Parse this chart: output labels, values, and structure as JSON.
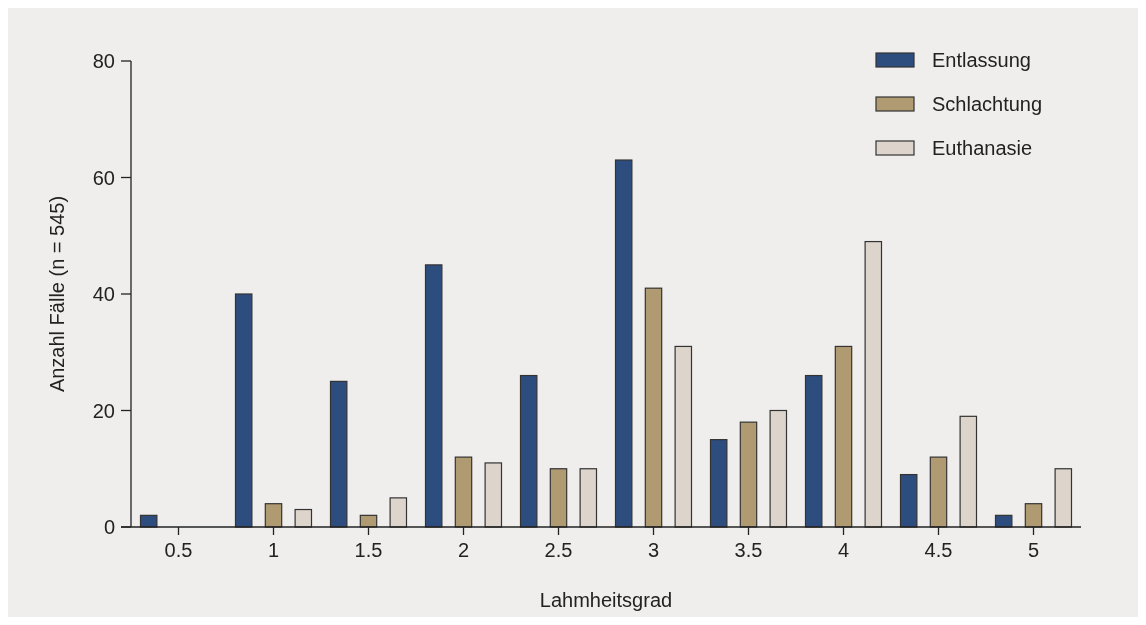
{
  "chart_data": {
    "type": "bar",
    "xlabel": "Lahmheitsgrad",
    "ylabel": "Anzahl Fälle (n = 545)",
    "categories": [
      "0.5",
      "1",
      "1.5",
      "2",
      "2.5",
      "3",
      "3.5",
      "4",
      "4.5",
      "5"
    ],
    "series": [
      {
        "name": "Entlassung",
        "color": "#2e4d7f",
        "values": [
          2,
          40,
          25,
          45,
          26,
          63,
          15,
          26,
          9,
          2
        ]
      },
      {
        "name": "Schlachtung",
        "color": "#b09a72",
        "values": [
          0,
          4,
          2,
          12,
          10,
          41,
          18,
          31,
          12,
          4
        ]
      },
      {
        "name": "Euthanasie",
        "color": "#ddd5cc",
        "values": [
          0,
          3,
          5,
          11,
          10,
          31,
          20,
          49,
          19,
          10
        ]
      }
    ],
    "ylim": [
      0,
      80
    ],
    "yticks": [
      0,
      20,
      40,
      60,
      80
    ],
    "grid": false,
    "legend": "top right"
  }
}
